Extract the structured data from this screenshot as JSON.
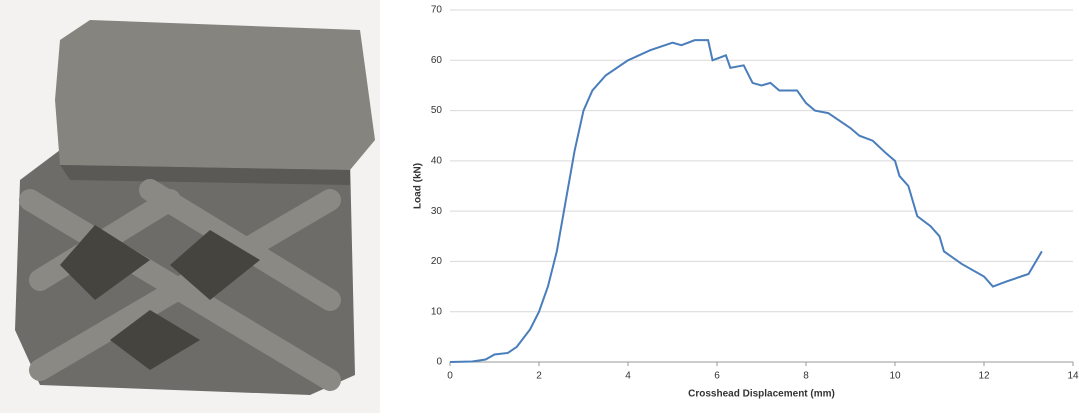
{
  "chart_data": {
    "type": "line",
    "x_label": "Crosshead Displacement (mm)",
    "y_label": "Load (kN)",
    "xlim": [
      0,
      14
    ],
    "xticks": [
      0,
      2,
      4,
      6,
      8,
      10,
      12,
      14
    ],
    "ylim": [
      0,
      70
    ],
    "yticks": [
      0,
      10,
      20,
      30,
      40,
      50,
      60,
      70
    ],
    "grid": true,
    "series": [
      {
        "color": "#4a7ebb",
        "x": [
          0,
          0.5,
          0.8,
          1,
          1.3,
          1.5,
          1.8,
          2,
          2.2,
          2.4,
          2.6,
          2.8,
          3,
          3.2,
          3.5,
          4,
          4.5,
          5,
          5.2,
          5.5,
          5.8,
          5.9,
          6.2,
          6.3,
          6.6,
          6.8,
          7,
          7.2,
          7.4,
          7.8,
          8,
          8.2,
          8.5,
          9,
          9.2,
          9.5,
          9.8,
          10,
          10.1,
          10.3,
          10.5,
          10.8,
          11,
          11.1,
          11.5,
          12,
          12.2,
          12.5,
          13,
          13.3
        ],
        "values": [
          0,
          0.1,
          0.5,
          1.5,
          1.8,
          3,
          6.5,
          10,
          15,
          22,
          32,
          42,
          50,
          54,
          57,
          60,
          62,
          63.5,
          63,
          64,
          64,
          60,
          61,
          58.5,
          59,
          55.5,
          55,
          55.5,
          54,
          54,
          51.5,
          50,
          49.5,
          46.5,
          45,
          44,
          41.5,
          40,
          37,
          35,
          29,
          27,
          25,
          22,
          19.5,
          17,
          15,
          16,
          17.5,
          22
        ]
      }
    ]
  }
}
